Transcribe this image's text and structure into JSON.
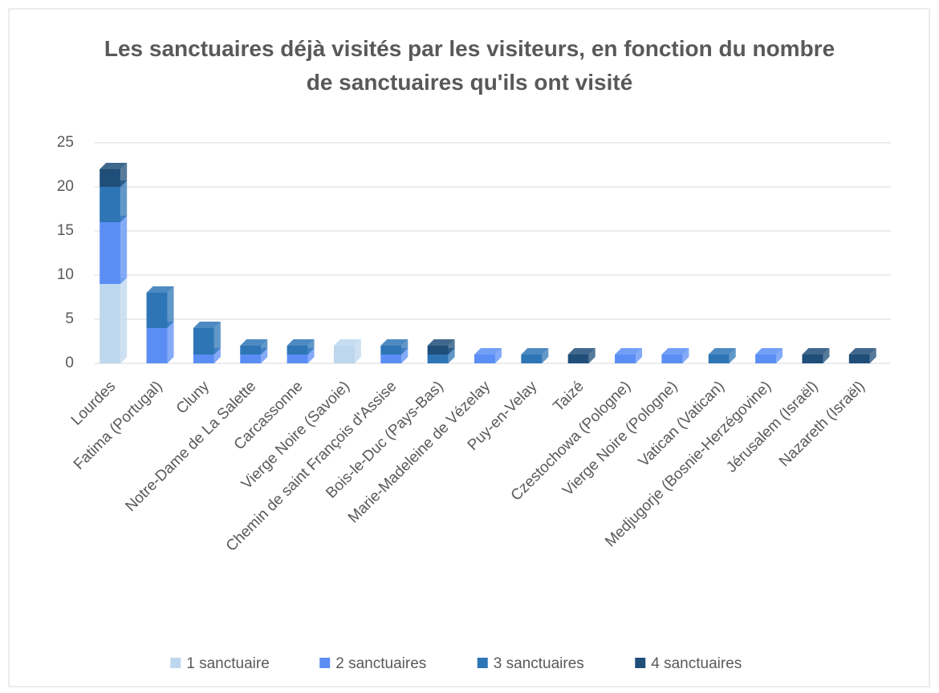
{
  "chart_data": {
    "type": "bar",
    "stacked": true,
    "title": "Les sanctuaires déjà visités par les visiteurs, en fonction du nombre de sanctuaires qu'ils ont visité",
    "categories": [
      "Lourdes",
      "Fatima (Portugal)",
      "Cluny",
      "Notre-Dame de La Salette",
      "Carcassonne",
      "Vierge Noire (Savoie)",
      "Chemin de saint François d'Assise",
      "Bois-le-Duc (Pays-Bas)",
      "Marie-Madeleine de Vézelay",
      "Puy-en-Velay",
      "Taizé",
      "Czestochowa (Pologne)",
      "Vierge Noire (Pologne)",
      "Vatican (Vatican)",
      "Medjugorje (Bosnie-Herzégovine)",
      "Jérusalem (Israël)",
      "Nazareth (Israël)"
    ],
    "series": [
      {
        "name": "1 sanctuaire",
        "color": "#bdd7ee",
        "values": [
          9,
          0,
          0,
          0,
          0,
          2,
          0,
          0,
          0,
          0,
          0,
          0,
          0,
          0,
          0,
          0,
          0
        ]
      },
      {
        "name": "2 sanctuaires",
        "color": "#5b8ef5",
        "values": [
          7,
          4,
          1,
          1,
          1,
          0,
          1,
          0,
          1,
          0,
          0,
          1,
          1,
          0,
          1,
          0,
          0
        ]
      },
      {
        "name": "3 sanctuaires",
        "color": "#2e75b6",
        "values": [
          4,
          4,
          3,
          1,
          1,
          0,
          1,
          1,
          0,
          1,
          0,
          0,
          0,
          1,
          0,
          0,
          0
        ]
      },
      {
        "name": "4 sanctuaires",
        "color": "#1f4e79",
        "values": [
          2,
          0,
          0,
          0,
          0,
          0,
          0,
          1,
          0,
          0,
          1,
          0,
          0,
          0,
          0,
          1,
          1
        ]
      }
    ],
    "ylim": [
      0,
      25
    ],
    "yticks": [
      0,
      5,
      10,
      15,
      20,
      25
    ],
    "grid": true,
    "legend": "bottom"
  }
}
